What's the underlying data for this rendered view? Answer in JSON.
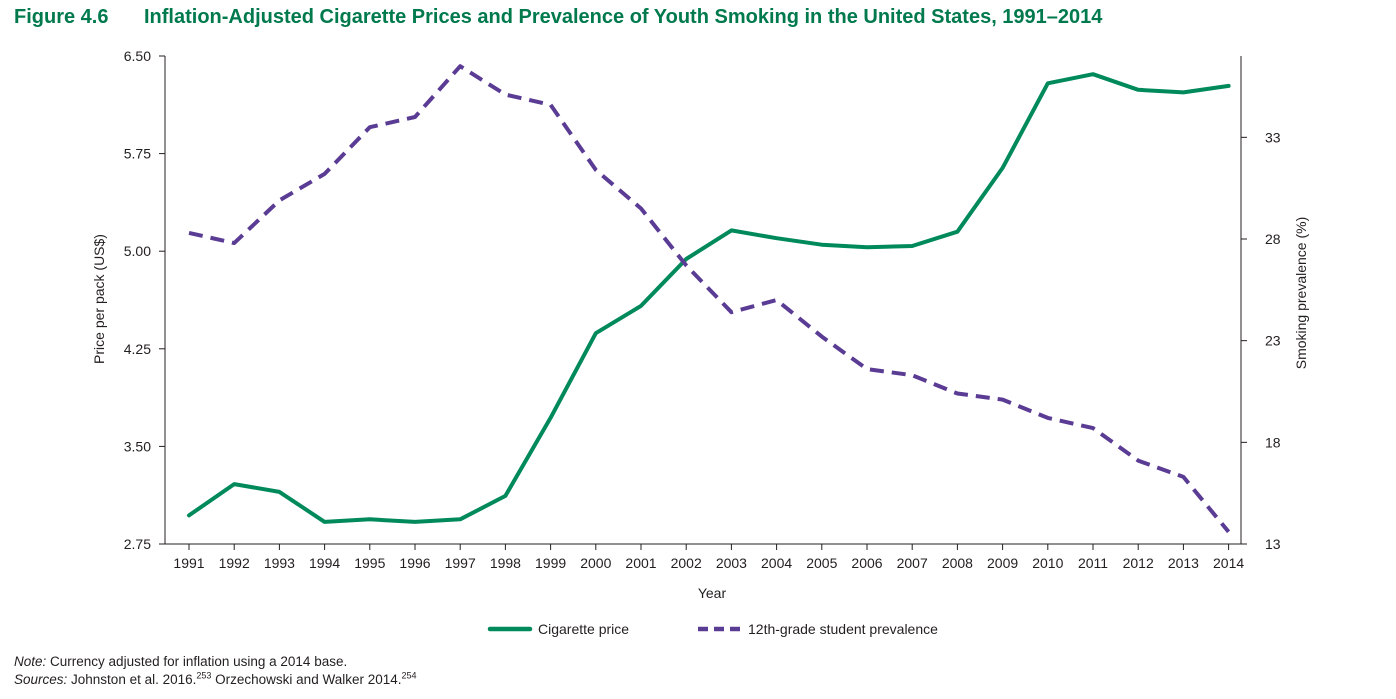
{
  "figure": {
    "number": "Figure 4.6",
    "title": "Inflation-Adjusted Cigarette Prices and Prevalence of Youth Smoking in the United States, 1991–2014"
  },
  "chart_data": {
    "type": "line",
    "x": [
      "1991",
      "1992",
      "1993",
      "1994",
      "1995",
      "1996",
      "1997",
      "1998",
      "1999",
      "2000",
      "2001",
      "2002",
      "2003",
      "2004",
      "2005",
      "2006",
      "2007",
      "2008",
      "2009",
      "2010",
      "2011",
      "2012",
      "2013",
      "2014"
    ],
    "xlabel": "Year",
    "ylabel_left": "Price per pack (US$)",
    "ylabel_right": "Smoking prevalence (%)",
    "ylim_left": [
      2.75,
      6.5
    ],
    "yticks_left": [
      "6.50",
      "5.75",
      "5.00",
      "4.25",
      "3.50",
      "2.75"
    ],
    "ylim_right": [
      13,
      37
    ],
    "yticks_right": [
      "33",
      "28",
      "23",
      "18",
      "13"
    ],
    "grid": false,
    "legend_position": "bottom",
    "series": [
      {
        "name": "Cigarette price",
        "axis": "left",
        "style": "solid",
        "color": "#008a5b",
        "values": [
          2.97,
          3.21,
          3.15,
          2.92,
          2.94,
          2.92,
          2.94,
          3.12,
          3.72,
          4.37,
          4.58,
          4.94,
          5.16,
          5.1,
          5.05,
          5.03,
          5.04,
          5.15,
          5.64,
          6.29,
          6.36,
          6.24,
          6.22,
          6.27
        ]
      },
      {
        "name": "12th-grade student prevalence",
        "axis": "right",
        "style": "dashed",
        "color": "#5b3c94",
        "values": [
          28.3,
          27.8,
          29.9,
          31.2,
          33.5,
          34.0,
          36.5,
          35.1,
          34.6,
          31.4,
          29.5,
          26.7,
          24.4,
          25.0,
          23.2,
          21.6,
          21.3,
          20.4,
          20.1,
          19.2,
          18.7,
          17.1,
          16.3,
          13.6
        ]
      }
    ]
  },
  "notes": {
    "note_label": "Note:",
    "note_text": " Currency adjusted for inflation using a 2014 base.",
    "sources_label": "Sources:",
    "source1": " Johnston et al. 2016.",
    "source1_ref": "253",
    "source2": " Orzechowski and Walker 2014.",
    "source2_ref": "254"
  }
}
